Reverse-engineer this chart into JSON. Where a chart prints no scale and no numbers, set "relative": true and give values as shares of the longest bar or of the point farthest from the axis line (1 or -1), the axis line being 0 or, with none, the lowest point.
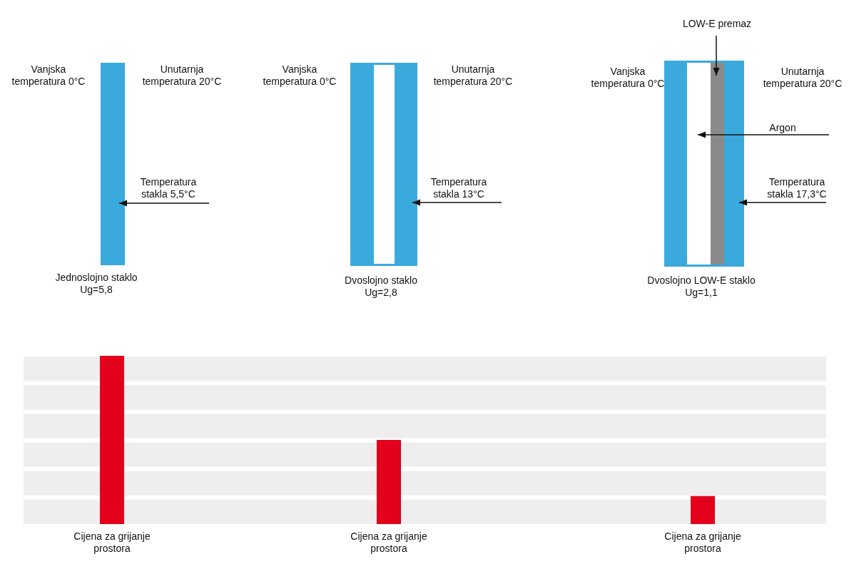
{
  "chart_data": {
    "type": "bar",
    "relative": true,
    "bands": [
      {
        "axis": "y",
        "from": 0,
        "to": 0.145,
        "color": "#eeeeee"
      },
      {
        "axis": "y",
        "from": 0.17,
        "to": 0.315,
        "color": "#eeeeee"
      },
      {
        "axis": "y",
        "from": 0.34,
        "to": 0.485,
        "color": "#eeeeee"
      },
      {
        "axis": "y",
        "from": 0.51,
        "to": 0.655,
        "color": "#eeeeee"
      },
      {
        "axis": "y",
        "from": 0.68,
        "to": 0.825,
        "color": "#eeeeee"
      },
      {
        "axis": "y",
        "from": 0.85,
        "to": 0.995,
        "color": "#eeeeee"
      }
    ],
    "categories": [
      "Cijena za grijanje\nprostora",
      "Cijena za grijanje\nprostora",
      "Cijena za grijanje\nprostora"
    ],
    "values": [
      1,
      0.5,
      0.1667
    ],
    "color": "#e3001b",
    "annotations": [
      "Vanjska\ntemperatura 0°C",
      "Unutarnja\ntemperatura 20°C",
      "Temperatura\nstakla 5,5°C",
      "Jednoslojno staklo\nUg=5,8",
      "Vanjska\ntemperatura 0°C",
      "Unutarnja\ntemperatura 20°C",
      "Temperatura\nstakla 13°C",
      "Dvoslojno staklo\nUg=2,8",
      "LOW-E premaz",
      "Vanjska\ntemperatura 0°C",
      "Unutarnja\ntemperatura 20°C",
      "Argon",
      "Temperatura\nstakla 17,3°C",
      "Dvoslojno LOW-E staklo\nUg=1,1"
    ]
  }
}
